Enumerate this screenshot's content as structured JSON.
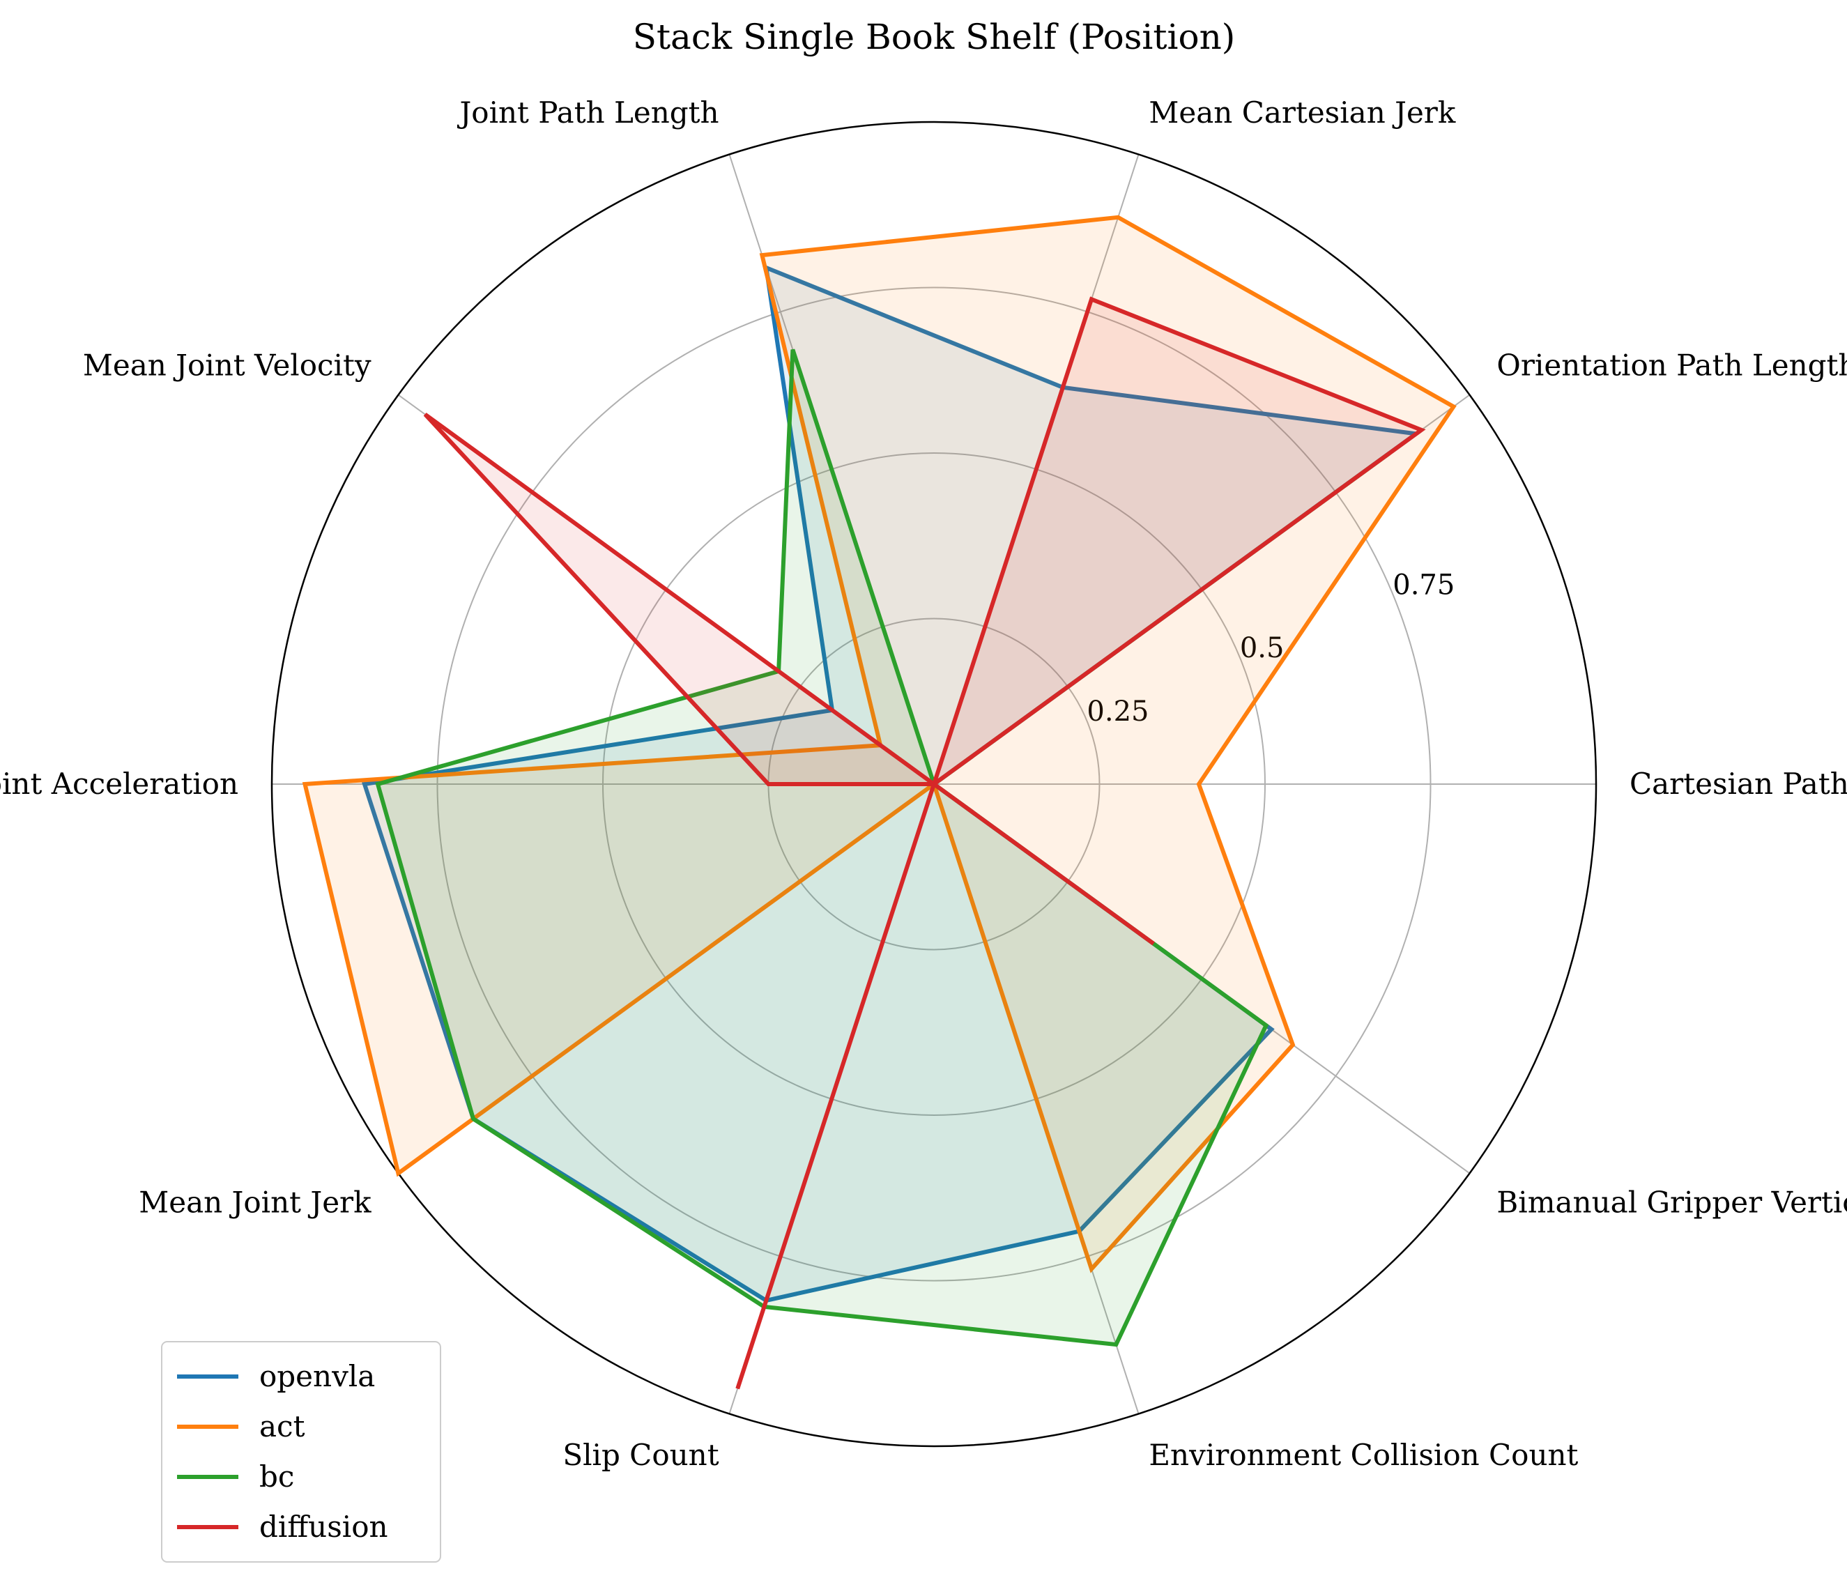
{
  "chart_data": {
    "type": "radar",
    "title": "Stack Single Book Shelf (Position)",
    "axes": [
      "Cartesian Path Length",
      "Orientation Path Length",
      "Mean Cartesian Jerk",
      "Joint Path Length",
      "Mean Joint Velocity",
      "Mean Joint Acceleration",
      "Mean Joint Jerk",
      "Slip Count",
      "Environment Collision Count",
      "Bimanual Gripper Vertical Difference"
    ],
    "rlim": [
      0,
      1
    ],
    "r_ticks": [
      0.25,
      0.5,
      0.75
    ],
    "r_tick_labels": [
      "0.25",
      "0.5",
      "0.75"
    ],
    "grid": true,
    "legend_position": "lower-left",
    "series": [
      {
        "name": "openvla",
        "color": "#1f77b4",
        "values": [
          0.0,
          0.9,
          0.63,
          0.82,
          0.19,
          0.86,
          0.86,
          0.82,
          0.71,
          0.63
        ]
      },
      {
        "name": "act",
        "color": "#ff7f0e",
        "values": [
          0.4,
          0.97,
          0.9,
          0.84,
          0.1,
          0.95,
          1.0,
          0.0,
          0.77,
          0.67
        ]
      },
      {
        "name": "bc",
        "color": "#2ca02c",
        "values": [
          0.0,
          0.85,
          0.0,
          0.69,
          0.29,
          0.84,
          0.86,
          0.83,
          0.89,
          0.62
        ]
      },
      {
        "name": "diffusion",
        "color": "#d62728",
        "values": [
          0.0,
          0.91,
          0.77,
          0.0,
          0.95,
          0.25,
          0.0,
          0.96,
          0.0,
          0.41
        ]
      }
    ]
  }
}
